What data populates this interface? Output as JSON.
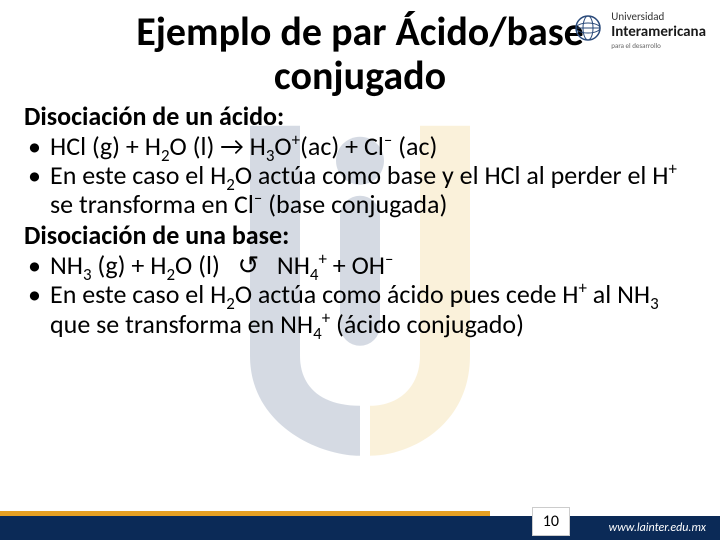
{
  "title_line1": "Ejemplo de par Ácido/base",
  "title_line2": "conjugado",
  "section1_heading": "Disociación de un ácido:",
  "bullet1_html": "HCl (g) + H<sub>2</sub>O (l) → H<sub>3</sub>O<sup>+</sup>(ac) + Cl<sup>–</sup> (ac)",
  "bullet2_html": "En este caso el H<sub>2</sub>O actúa como base y el HCl al perder el H<sup>+</sup> se transforma en Cl<sup>–</sup> (base conjugada)",
  "section2_heading": "Disociación de una base:",
  "bullet3_html": "NH<sub>3</sub> (g) + H<sub>2</sub>O (l) &nbsp;&nbsp;&#8634;&nbsp;&nbsp; NH<sub>4</sub><sup>+</sup> + OH<sup>–</sup>",
  "bullet4_html": "En este caso el H<sub>2</sub>O actúa como ácido pues cede H<sup>+</sup> al NH<sub>3</sub> que se transforma en NH<sub>4</sub><sup>+</sup> (ácido conjugado)",
  "logo": {
    "label_small": "Universidad",
    "label_main": "Interamericana",
    "tagline": "para el desarrollo"
  },
  "footer": {
    "page_number": "10",
    "url": "www.lainter.edu.mx"
  },
  "colors": {
    "navy": "#0b2a57",
    "orange": "#e7a022",
    "wm_navy": "#1b3a6b",
    "wm_gold": "#e8b43a"
  }
}
